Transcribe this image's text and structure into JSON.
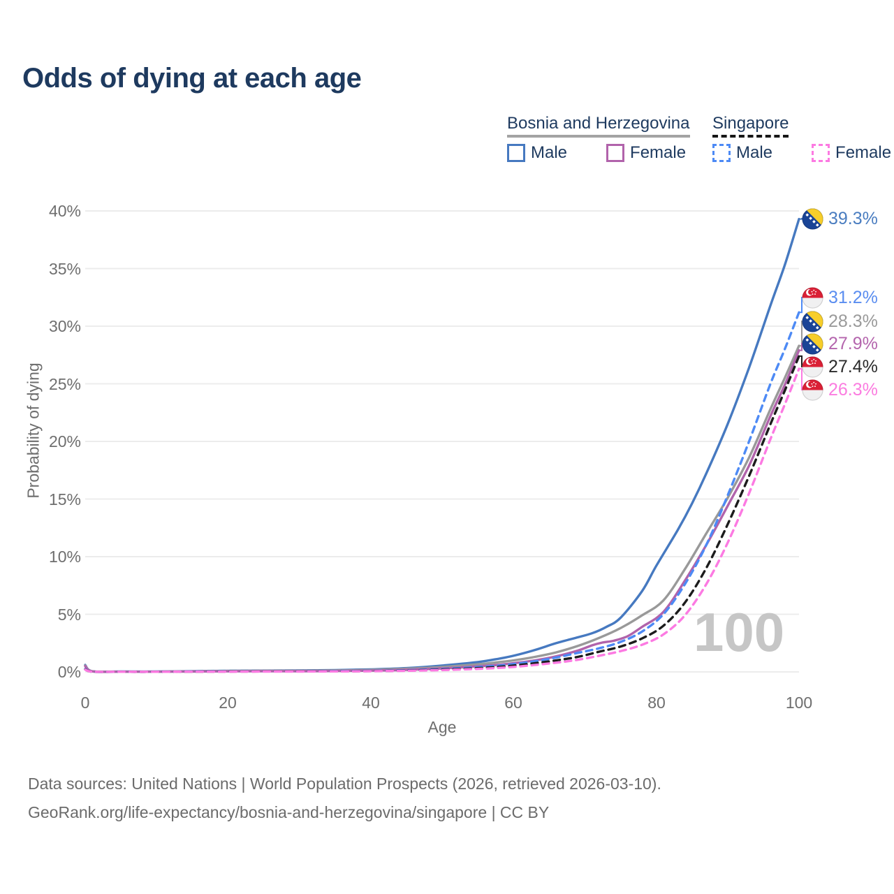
{
  "title": "Odds of dying at each age",
  "legend": {
    "groups": [
      {
        "label": "Bosnia and Herzegovina",
        "line_style": "solid",
        "underline_color": "#a3a3a3",
        "items": [
          {
            "label": "Male",
            "color": "#4679c0",
            "dashed": false
          },
          {
            "label": "Female",
            "color": "#b163ab",
            "dashed": false
          }
        ]
      },
      {
        "label": "Singapore",
        "line_style": "dashed",
        "underline_color": "#161616",
        "items": [
          {
            "label": "Male",
            "color": "#4d8af5",
            "dashed": true
          },
          {
            "label": "Female",
            "color": "#fc7ae2",
            "dashed": true
          }
        ]
      }
    ]
  },
  "chart_data": {
    "type": "line",
    "title": "Odds of dying at each age",
    "xlabel": "Age",
    "ylabel": "Probability of dying",
    "xlim": [
      0,
      100
    ],
    "ylim": [
      0,
      40
    ],
    "x_ticks": [
      0,
      20,
      40,
      60,
      80,
      100
    ],
    "y_ticks": [
      "0%",
      "5%",
      "10%",
      "15%",
      "20%",
      "25%",
      "30%",
      "35%",
      "40%"
    ],
    "grid": "horizontal",
    "legend_position": "top-right",
    "watermark": "100",
    "series": [
      {
        "name": "Bosnia and Herzegovina Male",
        "country": "Bosnia and Herzegovina",
        "sex": "Male",
        "color": "#4679c0",
        "label_color": "#4a7dc0",
        "dashed": false,
        "flag": "ba",
        "end_value": 39.3,
        "end_label": "39.3%",
        "points": [
          [
            0,
            0.6
          ],
          [
            1,
            0.05
          ],
          [
            5,
            0.03
          ],
          [
            10,
            0.03
          ],
          [
            15,
            0.06
          ],
          [
            20,
            0.1
          ],
          [
            25,
            0.11
          ],
          [
            30,
            0.13
          ],
          [
            35,
            0.16
          ],
          [
            40,
            0.22
          ],
          [
            45,
            0.33
          ],
          [
            50,
            0.55
          ],
          [
            55,
            0.85
          ],
          [
            58,
            1.15
          ],
          [
            60,
            1.4
          ],
          [
            63,
            1.9
          ],
          [
            66,
            2.5
          ],
          [
            69,
            3.0
          ],
          [
            71,
            3.35
          ],
          [
            73,
            3.9
          ],
          [
            75,
            4.7
          ],
          [
            78,
            7.0
          ],
          [
            80,
            9.2
          ],
          [
            83,
            12.3
          ],
          [
            85,
            14.6
          ],
          [
            87,
            17.2
          ],
          [
            90,
            21.5
          ],
          [
            93,
            26.4
          ],
          [
            96,
            31.8
          ],
          [
            98,
            35.3
          ],
          [
            100,
            39.3
          ]
        ]
      },
      {
        "name": "Bosnia and Herzegovina Total",
        "country": "Bosnia and Herzegovina",
        "sex": "Both sexes",
        "color": "#999999",
        "label_color": "#9a9a9a",
        "dashed": false,
        "flag": "ba",
        "end_value": 28.3,
        "end_label": "28.3%",
        "points": [
          [
            0,
            0.55
          ],
          [
            1,
            0.05
          ],
          [
            5,
            0.02
          ],
          [
            10,
            0.02
          ],
          [
            15,
            0.05
          ],
          [
            20,
            0.08
          ],
          [
            25,
            0.09
          ],
          [
            30,
            0.1
          ],
          [
            35,
            0.12
          ],
          [
            40,
            0.17
          ],
          [
            45,
            0.27
          ],
          [
            50,
            0.43
          ],
          [
            55,
            0.66
          ],
          [
            58,
            0.85
          ],
          [
            60,
            1.0
          ],
          [
            63,
            1.3
          ],
          [
            66,
            1.7
          ],
          [
            69,
            2.25
          ],
          [
            72,
            2.95
          ],
          [
            75,
            3.8
          ],
          [
            78,
            4.9
          ],
          [
            81,
            6.2
          ],
          [
            84,
            8.9
          ],
          [
            87,
            12.0
          ],
          [
            90,
            15.1
          ],
          [
            93,
            18.6
          ],
          [
            96,
            22.8
          ],
          [
            98,
            25.5
          ],
          [
            100,
            28.3
          ]
        ]
      },
      {
        "name": "Bosnia and Herzegovina Female",
        "country": "Bosnia and Herzegovina",
        "sex": "Female",
        "color": "#b163ab",
        "label_color": "#b465ad",
        "dashed": false,
        "flag": "ba",
        "end_value": 27.9,
        "end_label": "27.9%",
        "points": [
          [
            0,
            0.5
          ],
          [
            1,
            0.04
          ],
          [
            5,
            0.02
          ],
          [
            10,
            0.02
          ],
          [
            15,
            0.03
          ],
          [
            20,
            0.05
          ],
          [
            25,
            0.06
          ],
          [
            30,
            0.06
          ],
          [
            35,
            0.08
          ],
          [
            40,
            0.11
          ],
          [
            45,
            0.18
          ],
          [
            50,
            0.3
          ],
          [
            55,
            0.48
          ],
          [
            58,
            0.62
          ],
          [
            60,
            0.75
          ],
          [
            63,
            1.0
          ],
          [
            66,
            1.35
          ],
          [
            69,
            1.85
          ],
          [
            71,
            2.3
          ],
          [
            72.5,
            2.55
          ],
          [
            74,
            2.7
          ],
          [
            76,
            3.1
          ],
          [
            78,
            3.9
          ],
          [
            81,
            5.2
          ],
          [
            84,
            7.9
          ],
          [
            87,
            11.0
          ],
          [
            90,
            14.4
          ],
          [
            93,
            17.9
          ],
          [
            96,
            22.2
          ],
          [
            98,
            24.9
          ],
          [
            100,
            27.9
          ]
        ]
      },
      {
        "name": "Singapore Male",
        "country": "Singapore",
        "sex": "Male",
        "color": "#4d8af5",
        "label_color": "#5a8df0",
        "dashed": true,
        "flag": "sg",
        "end_value": 31.2,
        "end_label": "31.2%",
        "points": [
          [
            0,
            0.25
          ],
          [
            1,
            0.02
          ],
          [
            5,
            0.01
          ],
          [
            10,
            0.01
          ],
          [
            15,
            0.03
          ],
          [
            20,
            0.04
          ],
          [
            25,
            0.05
          ],
          [
            30,
            0.05
          ],
          [
            35,
            0.07
          ],
          [
            40,
            0.09
          ],
          [
            45,
            0.15
          ],
          [
            50,
            0.25
          ],
          [
            55,
            0.42
          ],
          [
            58,
            0.55
          ],
          [
            60,
            0.68
          ],
          [
            63,
            0.92
          ],
          [
            66,
            1.25
          ],
          [
            69,
            1.65
          ],
          [
            72,
            2.05
          ],
          [
            75,
            2.6
          ],
          [
            78,
            3.5
          ],
          [
            81,
            5.0
          ],
          [
            84,
            7.6
          ],
          [
            87,
            11.0
          ],
          [
            90,
            15.3
          ],
          [
            93,
            20.0
          ],
          [
            96,
            25.0
          ],
          [
            98,
            28.0
          ],
          [
            100,
            31.2
          ]
        ]
      },
      {
        "name": "Singapore Total",
        "country": "Singapore",
        "sex": "Both sexes",
        "color": "#1c1c1c",
        "label_color": "#2b2b2b",
        "dashed": true,
        "flag": "sg",
        "end_value": 27.4,
        "end_label": "27.4%",
        "points": [
          [
            0,
            0.22
          ],
          [
            1,
            0.02
          ],
          [
            5,
            0.01
          ],
          [
            10,
            0.01
          ],
          [
            15,
            0.02
          ],
          [
            20,
            0.03
          ],
          [
            25,
            0.04
          ],
          [
            30,
            0.04
          ],
          [
            35,
            0.05
          ],
          [
            40,
            0.07
          ],
          [
            45,
            0.12
          ],
          [
            50,
            0.2
          ],
          [
            55,
            0.33
          ],
          [
            58,
            0.44
          ],
          [
            60,
            0.55
          ],
          [
            63,
            0.75
          ],
          [
            66,
            1.0
          ],
          [
            69,
            1.3
          ],
          [
            72,
            1.75
          ],
          [
            75,
            2.2
          ],
          [
            78,
            2.9
          ],
          [
            81,
            4.0
          ],
          [
            84,
            6.0
          ],
          [
            87,
            9.0
          ],
          [
            90,
            12.8
          ],
          [
            93,
            17.0
          ],
          [
            96,
            21.5
          ],
          [
            98,
            24.4
          ],
          [
            100,
            27.4
          ]
        ]
      },
      {
        "name": "Singapore Female",
        "country": "Singapore",
        "sex": "Female",
        "color": "#fc7ae2",
        "label_color": "#fb7ce0",
        "dashed": true,
        "flag": "sg",
        "end_value": 26.3,
        "end_label": "26.3%",
        "points": [
          [
            0,
            0.2
          ],
          [
            1,
            0.02
          ],
          [
            5,
            0.01
          ],
          [
            10,
            0.01
          ],
          [
            15,
            0.02
          ],
          [
            20,
            0.02
          ],
          [
            25,
            0.03
          ],
          [
            30,
            0.03
          ],
          [
            35,
            0.04
          ],
          [
            40,
            0.06
          ],
          [
            45,
            0.1
          ],
          [
            50,
            0.16
          ],
          [
            55,
            0.26
          ],
          [
            58,
            0.35
          ],
          [
            60,
            0.43
          ],
          [
            63,
            0.6
          ],
          [
            66,
            0.8
          ],
          [
            69,
            1.05
          ],
          [
            72,
            1.4
          ],
          [
            75,
            1.8
          ],
          [
            78,
            2.35
          ],
          [
            81,
            3.25
          ],
          [
            84,
            4.9
          ],
          [
            87,
            7.6
          ],
          [
            90,
            11.2
          ],
          [
            93,
            15.5
          ],
          [
            96,
            20.2
          ],
          [
            98,
            23.2
          ],
          [
            100,
            26.3
          ]
        ]
      }
    ]
  },
  "footer": {
    "line1": "Data sources: United Nations | World Population Prospects (2026, retrieved 2026-03-10).",
    "line2": "GeoRank.org/life-expectancy/bosnia-and-herzegovina/singapore | CC BY"
  }
}
